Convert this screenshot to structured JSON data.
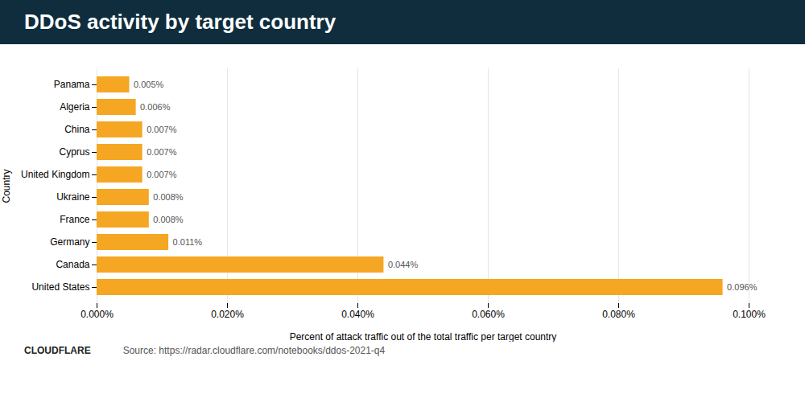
{
  "chart_data": {
    "type": "bar",
    "orientation": "horizontal",
    "title": "DDoS activity by target country",
    "categories": [
      "United States",
      "Canada",
      "Germany",
      "France",
      "Ukraine",
      "United Kingdom",
      "Cyprus",
      "China",
      "Algeria",
      "Panama"
    ],
    "values": [
      0.00096,
      0.00044,
      0.00011,
      8e-05,
      8e-05,
      7e-05,
      7e-05,
      7e-05,
      6e-05,
      5e-05
    ],
    "value_labels": [
      "0.096%",
      "0.044%",
      "0.011%",
      "0.008%",
      "0.008%",
      "0.007%",
      "0.007%",
      "0.007%",
      "0.006%",
      "0.005%"
    ],
    "data_labels": true,
    "color": "#f5a623",
    "xlabel": "Percent of attack traffic out of the total traffic per target country",
    "ylabel": "Country",
    "xlim": [
      0,
      0.001
    ],
    "xticks": [
      {
        "value": 0.0,
        "label": "0.000%"
      },
      {
        "value": 0.0002,
        "label": "0.020%"
      },
      {
        "value": 0.0004,
        "label": "0.040%"
      },
      {
        "value": 0.0006,
        "label": "0.060%"
      },
      {
        "value": 0.0008,
        "label": "0.080%"
      },
      {
        "value": 0.001,
        "label": "0.100%"
      }
    ],
    "grid": true,
    "annotations": [
      "CLOUDFLARE",
      "Source: https://radar.cloudflare.com/notebooks/ddos-2021-q4"
    ]
  }
}
